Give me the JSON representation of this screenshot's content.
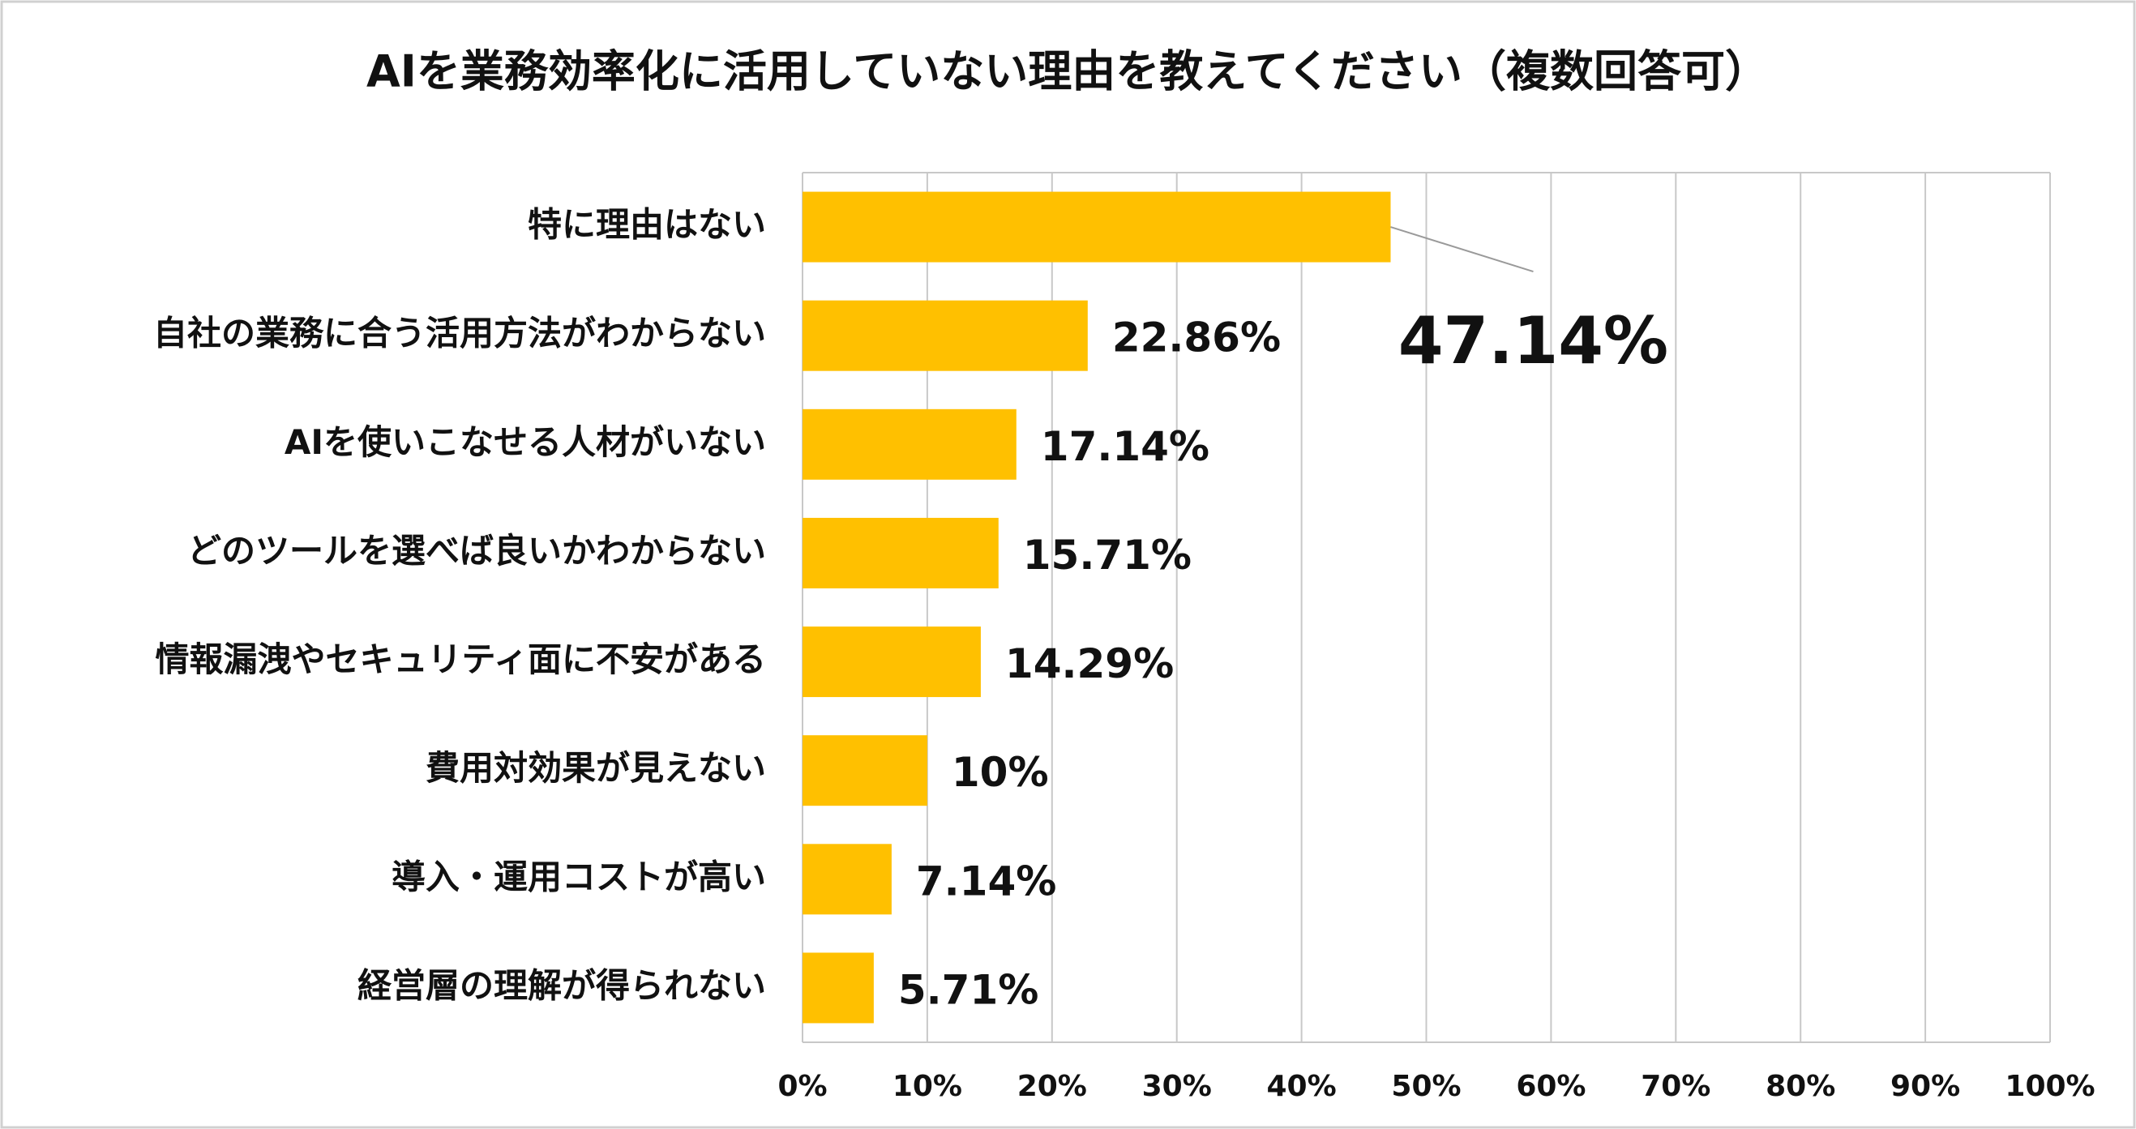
{
  "chart_data": {
    "type": "bar",
    "orientation": "horizontal",
    "title": "AIを業務効率化に活用していない理由を教えてください（複数回答可）",
    "categories": [
      "特に理由はない",
      "自社の業務に合う活用方法がわからない",
      "AIを使いこなせる人材がいない",
      "どのツールを選べば良いかわからない",
      "情報漏洩やセキュリティ面に不安がある",
      "費用対効果が見えない",
      "導入・運用コストが高い",
      "経営層の理解が得られない"
    ],
    "values": [
      47.14,
      22.86,
      17.14,
      15.71,
      14.29,
      10,
      7.14,
      5.71
    ],
    "value_labels": [
      "47.14%",
      "22.86%",
      "17.14%",
      "15.71%",
      "14.29%",
      "10%",
      "7.14%",
      "5.71%"
    ],
    "color": "#FFC000",
    "highlight_color": "#F7993B",
    "xlim": [
      0,
      100
    ],
    "xticks": [
      {
        "value": 0,
        "label": "0%"
      },
      {
        "value": 10,
        "label": "10%"
      },
      {
        "value": 20,
        "label": "20%"
      },
      {
        "value": 30,
        "label": "30%"
      },
      {
        "value": 40,
        "label": "40%"
      },
      {
        "value": 50,
        "label": "50%"
      },
      {
        "value": 60,
        "label": "60%"
      },
      {
        "value": 70,
        "label": "70%"
      },
      {
        "value": 80,
        "label": "80%"
      },
      {
        "value": 90,
        "label": "90%"
      },
      {
        "value": 100,
        "label": "100%"
      }
    ],
    "grid": true
  }
}
